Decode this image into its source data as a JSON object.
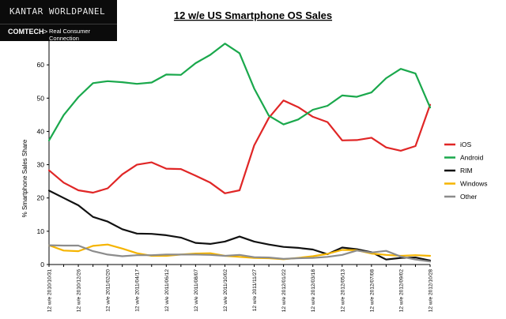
{
  "logo": {
    "wordmark": "KANTAR WORLDPANEL",
    "brand": "COMTECH",
    "separator": ">",
    "tagline": "Real Consumer Connection"
  },
  "chart_data": {
    "type": "line",
    "title": "12 w/e US Smartphone OS Sales",
    "ylabel": "% Smartphone Sales Share",
    "xlabel": "",
    "ylim": [
      0,
      70
    ],
    "yticks": [
      0,
      10,
      20,
      30,
      40,
      50,
      60
    ],
    "grid": false,
    "legend": "right",
    "x": [
      "12 w/e 2010/10/31",
      "12 w/e 2010/11/28",
      "12 w/e 2010/12/26",
      "12 w/e 2011/01/23",
      "12 w/e 2011/02/20",
      "12 w/e 2011/03/20",
      "12 w/e 2011/04/17",
      "12 w/e 2011/05/15",
      "12 w/e 2011/06/12",
      "12 w/e 2011/07/10",
      "12 w/e 2011/08/07",
      "12 w/e 2011/09/04",
      "12 w/e 2011/10/02",
      "12 w/e 2011/10/30",
      "12 w/e 2011/11/27",
      "12 w/e 2011/12/25",
      "12 w/e 2012/01/22",
      "12 w/e 2012/02/19",
      "12 w/e 2012/03/18",
      "12 w/e 2012/04/15",
      "12 w/e 2012/05/13",
      "12 w/e 2012/06/10",
      "12 w/e 2012/07/08",
      "12 w/e 2012/08/05",
      "12 w/e 2012/09/02",
      "12 w/e 2012/09/30",
      "12 w/e 2012/10/28"
    ],
    "tick_label_every": 2,
    "series": [
      {
        "name": "iOS",
        "color": "#e02626",
        "values": [
          28.3,
          24.6,
          22.3,
          21.6,
          22.9,
          27.1,
          30.0,
          30.7,
          28.8,
          28.7,
          26.7,
          24.6,
          21.4,
          22.3,
          35.8,
          44.1,
          49.3,
          47.3,
          44.4,
          42.8,
          37.3,
          37.4,
          38.1,
          35.2,
          34.2,
          35.6,
          48.0
        ]
      },
      {
        "name": "Android",
        "color": "#1aa84c",
        "values": [
          37.3,
          44.9,
          50.3,
          54.5,
          55.1,
          54.8,
          54.3,
          54.7,
          57.1,
          57.0,
          60.5,
          63.0,
          66.4,
          63.5,
          52.9,
          44.7,
          42.1,
          43.6,
          46.5,
          47.7,
          50.8,
          50.4,
          51.7,
          56.0,
          58.8,
          57.4,
          47.2
        ]
      },
      {
        "name": "RIM",
        "color": "#111111",
        "values": [
          22.2,
          20.0,
          17.8,
          14.3,
          12.9,
          10.6,
          9.3,
          9.2,
          8.8,
          8.1,
          6.5,
          6.2,
          6.9,
          8.4,
          6.9,
          6.0,
          5.3,
          5.0,
          4.5,
          3.1,
          5.1,
          4.6,
          3.7,
          1.5,
          2.0,
          2.1,
          1.2
        ]
      },
      {
        "name": "Windows",
        "color": "#f5b400",
        "values": [
          5.8,
          4.2,
          4.0,
          5.6,
          6.0,
          4.8,
          3.4,
          2.6,
          2.6,
          3.0,
          3.3,
          3.4,
          2.6,
          2.3,
          2.0,
          1.9,
          1.6,
          2.0,
          2.5,
          3.2,
          4.4,
          4.3,
          3.3,
          2.9,
          2.6,
          2.8,
          2.6
        ]
      },
      {
        "name": "Other",
        "color": "#8c8c8c",
        "values": [
          5.8,
          5.7,
          5.7,
          4.0,
          3.0,
          2.5,
          2.8,
          2.8,
          3.0,
          3.0,
          3.0,
          2.9,
          2.6,
          2.9,
          2.2,
          2.1,
          1.7,
          1.9,
          2.0,
          2.3,
          2.9,
          4.2,
          3.6,
          4.1,
          2.4,
          1.5,
          0.9
        ]
      }
    ]
  }
}
